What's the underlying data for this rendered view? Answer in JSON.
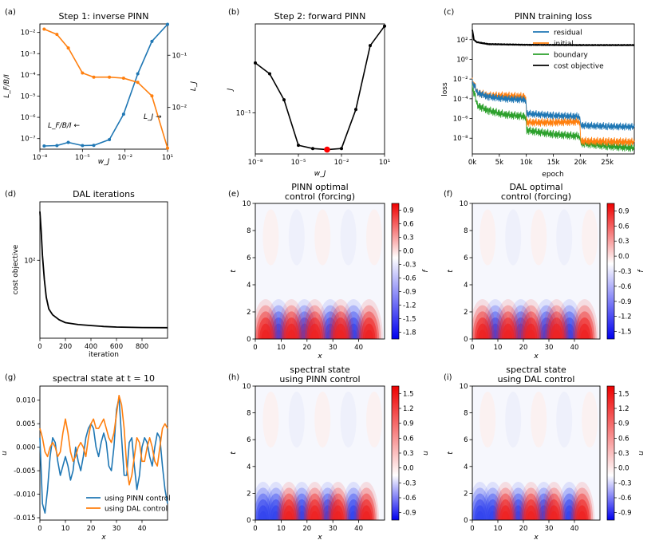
{
  "colors": {
    "blue": "#1f77b4",
    "orange": "#ff7f0e",
    "green": "#2ca02c",
    "black": "#000000",
    "red": "#ff0000"
  },
  "chart_data": [
    {
      "id": "a",
      "panel_label": "(a)",
      "type": "line",
      "title": "Step 1: inverse PINN",
      "xlabel": "w_J",
      "ylabel_left": "L_F/B/I",
      "ylabel_right": "L_J",
      "xscale": "log",
      "xlim_log10": [
        -8,
        1
      ],
      "ylim_left_log10": [
        -7.5,
        -1.6
      ],
      "ylim_right_log10": [
        -2.8,
        -0.4
      ],
      "xticks": [
        "10⁻⁸",
        "10⁻⁵",
        "10⁻²",
        "10¹"
      ],
      "yticks_left": [
        "10⁻⁷",
        "10⁻⁶",
        "10⁻⁵",
        "10⁻⁴",
        "10⁻³",
        "10⁻²"
      ],
      "yticks_right": [
        "10⁻²",
        "10⁻¹"
      ],
      "x_log10": [
        -7.7,
        -6.8,
        -6.0,
        -5.0,
        -4.2,
        -3.1,
        -2.1,
        -1.1,
        -0.1,
        1.0
      ],
      "series": [
        {
          "name": "L_F/B/I",
          "axis": "left",
          "color": "blue",
          "log10_values": [
            -7.35,
            -7.33,
            -7.18,
            -7.33,
            -7.32,
            -7.05,
            -5.85,
            -3.95,
            -2.42,
            -1.62
          ]
        },
        {
          "name": "L_J",
          "axis": "right",
          "color": "orange",
          "log10_values": [
            -0.5,
            -0.6,
            -0.86,
            -1.34,
            -1.42,
            -1.42,
            -1.44,
            -1.52,
            -1.78,
            -2.78
          ]
        }
      ],
      "annotations": [
        "L_F/B/I ←",
        "L_J →"
      ]
    },
    {
      "id": "b",
      "panel_label": "(b)",
      "type": "line",
      "title": "Step 2: forward PINN",
      "xlabel": "w_J",
      "ylabel": "J",
      "xscale": "log",
      "yscale": "log",
      "xlim_log10": [
        -8,
        1
      ],
      "ylim_log10": [
        -1.38,
        -0.18
      ],
      "xticks": [
        "10⁻⁸",
        "10⁻⁵",
        "10⁻²",
        "10¹"
      ],
      "yticks": [
        "10⁻¹"
      ],
      "x_log10": [
        -8,
        -7.0,
        -6.0,
        -5.0,
        -4.0,
        -3.0,
        -2.0,
        -1.0,
        0.0,
        1.0
      ],
      "log10_values": [
        -0.54,
        -0.64,
        -0.88,
        -1.3,
        -1.33,
        -1.34,
        -1.33,
        -0.97,
        -0.38,
        -0.2
      ],
      "highlight_index": 5
    },
    {
      "id": "c",
      "panel_label": "(c)",
      "type": "line",
      "title": "PINN training loss",
      "xlabel": "epoch",
      "ylabel": "loss",
      "yscale": "log",
      "xlim": [
        0,
        30000
      ],
      "ylim_log10": [
        -9.6,
        3.6
      ],
      "xticks": [
        "0k",
        "5k",
        "10k",
        "15k",
        "20k",
        "25k"
      ],
      "yticks": [
        "10⁻⁸",
        "10⁻⁶",
        "10⁻⁴",
        "10⁻²",
        "10⁰",
        "10²"
      ],
      "legend": [
        "residual",
        "initial",
        "boundary",
        "cost objective"
      ],
      "series": [
        {
          "name": "cost objective",
          "color": "black",
          "x": [
            0,
            300,
            800,
            3000,
            10000,
            20000,
            30000
          ],
          "log10_values": [
            3.0,
            2.0,
            1.75,
            1.55,
            1.48,
            1.45,
            1.45
          ]
        },
        {
          "name": "residual",
          "color": "blue",
          "x": [
            0,
            1000,
            3000,
            6000,
            9900,
            10100,
            15000,
            19900,
            20100,
            25000,
            30000
          ],
          "log10_values": [
            -2.3,
            -3.4,
            -3.8,
            -4.0,
            -4.1,
            -5.5,
            -5.7,
            -5.8,
            -6.7,
            -6.8,
            -6.85
          ]
        },
        {
          "name": "initial",
          "color": "orange",
          "x": [
            0,
            1000,
            3000,
            6000,
            9900,
            10100,
            15000,
            19900,
            20100,
            25000,
            30000
          ],
          "log10_values": [
            -2.2,
            -3.4,
            -3.7,
            -3.7,
            -3.8,
            -6.4,
            -6.4,
            -6.3,
            -8.3,
            -8.35,
            -8.4
          ]
        },
        {
          "name": "boundary",
          "color": "green",
          "x": [
            0,
            1000,
            3000,
            6000,
            9900,
            10100,
            15000,
            19900,
            20100,
            25000,
            30000
          ],
          "log10_values": [
            -2.8,
            -4.7,
            -5.2,
            -5.6,
            -5.8,
            -7.2,
            -7.6,
            -7.8,
            -8.5,
            -8.8,
            -9.0
          ]
        }
      ]
    },
    {
      "id": "d",
      "panel_label": "(d)",
      "type": "line",
      "title": "DAL iterations",
      "xlabel": "iteration",
      "ylabel": "cost objective",
      "yscale": "log",
      "xlim": [
        0,
        1000
      ],
      "ylim_log10": [
        1.2,
        2.6
      ],
      "xticks": [
        "0",
        "200",
        "400",
        "600",
        "800"
      ],
      "yticks": [
        "10²"
      ],
      "x": [
        0,
        10,
        20,
        35,
        50,
        70,
        100,
        150,
        200,
        300,
        400,
        500,
        600,
        800,
        1000
      ],
      "log10_values": [
        2.5,
        2.3,
        2.05,
        1.8,
        1.62,
        1.5,
        1.44,
        1.39,
        1.36,
        1.34,
        1.33,
        1.32,
        1.315,
        1.31,
        1.308
      ]
    },
    {
      "id": "e",
      "panel_label": "(e)",
      "type": "heatmap",
      "title": [
        "PINN optimal",
        "control (forcing)"
      ],
      "xlabel": "x",
      "ylabel": "t",
      "colorbar_label": "f",
      "xticks": [
        "0",
        "10",
        "20",
        "30",
        "40"
      ],
      "yticks": [
        "0",
        "2",
        "4",
        "6",
        "8",
        "10"
      ],
      "colorbar_ticks": [
        "0.9",
        "0.6",
        "0.3",
        "0.0",
        "-0.3",
        "-0.6",
        "-0.9",
        "-1.2",
        "-1.5",
        "-1.8"
      ],
      "red_peaks_x": [
        4,
        14,
        23,
        33,
        44
      ],
      "blue_peaks_x": [
        9,
        19,
        29,
        38
      ]
    },
    {
      "id": "f",
      "panel_label": "(f)",
      "type": "heatmap",
      "title": [
        "DAL optimal",
        "control (forcing)"
      ],
      "xlabel": "x",
      "ylabel": "t",
      "colorbar_label": "f",
      "xticks": [
        "0",
        "10",
        "20",
        "30",
        "40"
      ],
      "yticks": [
        "0",
        "2",
        "4",
        "6",
        "8",
        "10"
      ],
      "colorbar_ticks": [
        "0.9",
        "0.6",
        "0.3",
        "0.0",
        "-0.3",
        "-0.6",
        "-0.9",
        "-1.2",
        "-1.5"
      ],
      "red_peaks_x": [
        4,
        14,
        23,
        33,
        44
      ],
      "blue_peaks_x": [
        9,
        19,
        29,
        38
      ]
    },
    {
      "id": "g",
      "panel_label": "(g)",
      "type": "line",
      "title": "spectral state at t = 10",
      "xlabel": "x",
      "ylabel": "u",
      "xlim": [
        0,
        50
      ],
      "ylim": [
        -0.0155,
        0.013
      ],
      "xticks": [
        "0",
        "10",
        "20",
        "30",
        "40"
      ],
      "yticks": [
        "-0.015",
        "-0.010",
        "-0.005",
        "0.000",
        "0.005",
        "0.010"
      ],
      "legend": [
        "using PINN control",
        "using DAL control"
      ],
      "x": [
        0,
        1,
        2,
        3,
        4,
        5,
        6,
        7,
        8,
        9,
        10,
        11,
        12,
        13,
        14,
        15,
        16,
        17,
        18,
        19,
        20,
        21,
        22,
        23,
        24,
        25,
        26,
        27,
        28,
        29,
        30,
        31,
        32,
        33,
        34,
        35,
        36,
        37,
        38,
        39,
        40,
        41,
        42,
        43,
        44,
        45,
        46,
        47,
        48,
        49,
        50
      ],
      "series": [
        {
          "name": "using PINN control",
          "color": "blue",
          "values": [
            0.002,
            -0.012,
            -0.014,
            -0.009,
            -0.002,
            0.002,
            0.001,
            -0.003,
            -0.006,
            -0.004,
            -0.002,
            -0.004,
            -0.007,
            -0.005,
            0.0,
            -0.003,
            -0.005,
            -0.002,
            0.002,
            0.004,
            0.005,
            0.004,
            0.0,
            -0.002,
            0.001,
            0.003,
            0.001,
            -0.004,
            -0.005,
            0.0,
            0.008,
            0.0105,
            0.002,
            -0.006,
            -0.006,
            0.001,
            0.002,
            -0.004,
            -0.009,
            -0.006,
            0.0,
            0.002,
            0.001,
            -0.002,
            -0.004,
            0.0,
            0.003,
            0.002,
            -0.004,
            -0.009,
            -0.012
          ]
        },
        {
          "name": "using DAL control",
          "color": "orange",
          "values": [
            0.004,
            0.002,
            -0.001,
            -0.002,
            0.0,
            0.001,
            0.0,
            -0.002,
            -0.001,
            0.003,
            0.006,
            0.003,
            -0.001,
            -0.003,
            -0.002,
            0.0,
            0.001,
            0.0,
            -0.002,
            0.002,
            0.005,
            0.006,
            0.004,
            0.004,
            0.005,
            0.006,
            0.004,
            0.002,
            0.001,
            0.003,
            0.007,
            0.011,
            0.009,
            0.004,
            -0.004,
            -0.008,
            -0.006,
            -0.002,
            0.002,
            0.001,
            -0.003,
            -0.003,
            0.0,
            0.002,
            0.0,
            -0.003,
            -0.004,
            0.0,
            0.004,
            0.005,
            0.004
          ]
        }
      ]
    },
    {
      "id": "h",
      "panel_label": "(h)",
      "type": "heatmap",
      "title": [
        "spectral state",
        "using PINN control"
      ],
      "xlabel": "x",
      "ylabel": "t",
      "colorbar_label": "u",
      "xticks": [
        "0",
        "10",
        "20",
        "30",
        "40"
      ],
      "yticks": [
        "0",
        "2",
        "4",
        "6",
        "8",
        "10"
      ],
      "colorbar_ticks": [
        "1.5",
        "1.2",
        "0.9",
        "0.6",
        "0.3",
        "0.0",
        "-0.3",
        "-0.6",
        "-0.9"
      ],
      "red_peaks_x": [
        13,
        23,
        32,
        43
      ],
      "blue_peaks_x": [
        3,
        8,
        18,
        28,
        38
      ]
    },
    {
      "id": "i",
      "panel_label": "(i)",
      "type": "heatmap",
      "title": [
        "spectral state",
        "using DAL control"
      ],
      "xlabel": "x",
      "ylabel": "t",
      "colorbar_label": "u",
      "xticks": [
        "0",
        "10",
        "20",
        "30",
        "40"
      ],
      "yticks": [
        "0",
        "2",
        "4",
        "6",
        "8",
        "10"
      ],
      "colorbar_ticks": [
        "1.5",
        "1.2",
        "0.9",
        "0.6",
        "0.3",
        "0.0",
        "-0.3",
        "-0.6",
        "-0.9"
      ],
      "red_peaks_x": [
        13,
        23,
        32,
        43
      ],
      "blue_peaks_x": [
        3,
        8,
        18,
        28,
        38
      ]
    }
  ]
}
